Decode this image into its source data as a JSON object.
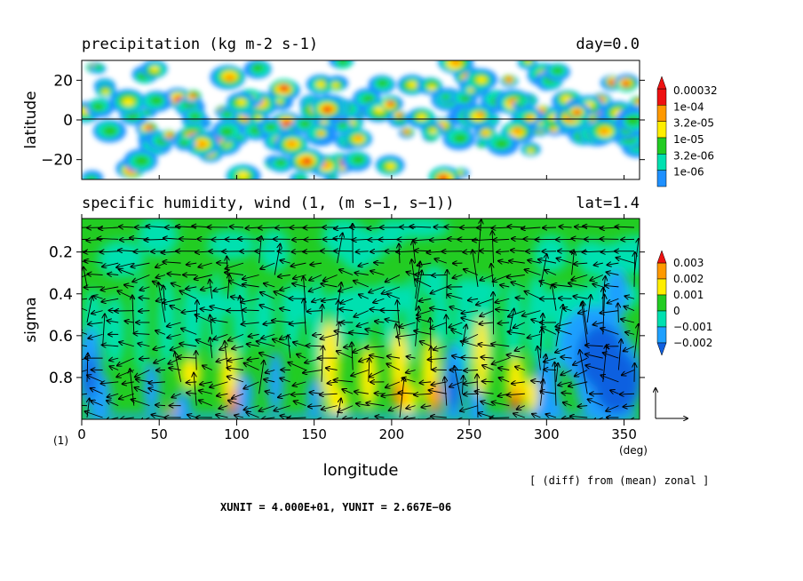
{
  "chart_data": [
    {
      "type": "heatmap",
      "title": "precipitation (kg m-2 s-1)",
      "title_right": "day=0.0",
      "xlabel": "",
      "ylabel": "latitude",
      "xlim": [
        0,
        360
      ],
      "ylim": [
        -30,
        30
      ],
      "y_ticks": [
        20,
        0,
        -20
      ],
      "y_tick_labels": [
        "20",
        "0",
        "−20"
      ],
      "reference_line_y": 0,
      "colorbar": {
        "labels": [
          "0.00032",
          "1e-04",
          "3.2e-05",
          "1e-05",
          "3.2e-06",
          "1e-06"
        ],
        "levels": [
          1e-06,
          3.2e-06,
          1e-05,
          3.2e-05,
          0.0001,
          0.00032
        ],
        "colors": [
          "#1e90ff",
          "#00e0b0",
          "#22cc22",
          "#ffee00",
          "#ff9900",
          "#ee1111"
        ]
      },
      "contour_field_description": ""
    },
    {
      "type": "heatmap",
      "title": "specific humidity, wind (1, (m s−1, s−1))",
      "title_right": "lat=1.4",
      "xlabel": "longitude",
      "x_unit": "(deg)",
      "ylabel": "sigma",
      "xlim": [
        0,
        360
      ],
      "ylim": [
        1.0,
        0.0
      ],
      "x_ticks": [
        0,
        50,
        100,
        150,
        200,
        250,
        300,
        350
      ],
      "x_tick_labels": [
        "0",
        "50",
        "100",
        "150",
        "200",
        "250",
        "300",
        "350"
      ],
      "y_ticks": [
        0.2,
        0.4,
        0.6,
        0.8
      ],
      "y_tick_labels": [
        "0.2",
        "0.4",
        "0.6",
        "0.8"
      ],
      "colorbar": {
        "labels": [
          "0.003",
          "0.002",
          "0.001",
          "0",
          "−0.001",
          "−0.002"
        ],
        "levels": [
          -0.002,
          -0.001,
          0,
          0.001,
          0.002,
          0.003
        ],
        "colors": [
          "#1060e0",
          "#1ea0ff",
          "#00e0b0",
          "#22cc22",
          "#ffee00",
          "#ff9900",
          "#ee1111"
        ]
      },
      "unit_label": "(1)",
      "note": "[ (diff) from (mean) zonal ]",
      "footer": "XUNIT = 4.000E+01, YUNIT = 2.667E−06"
    }
  ]
}
